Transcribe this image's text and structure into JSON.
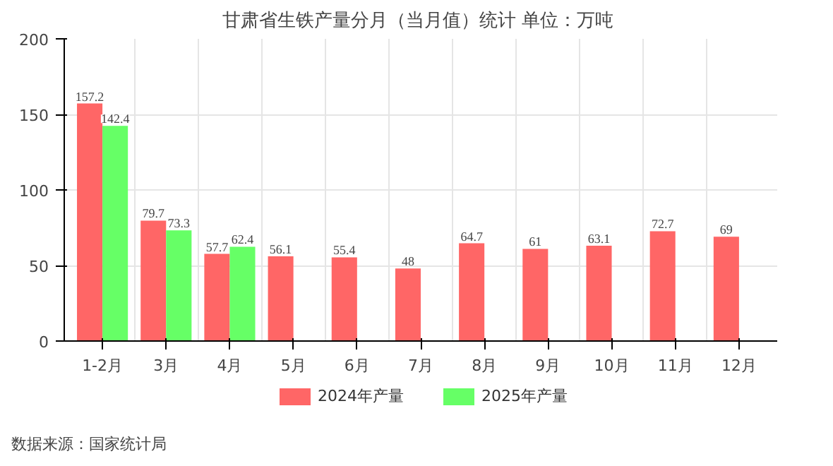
{
  "chart_data": {
    "type": "bar",
    "title": "甘肃省生铁产量分月（当月值）统计  单位：万吨",
    "categories": [
      "1-2月",
      "3月",
      "4月",
      "5月",
      "6月",
      "7月",
      "8月",
      "9月",
      "10月",
      "11月",
      "12月"
    ],
    "series": [
      {
        "name": "2024年产量",
        "color": "#ff6666",
        "values": [
          157.2,
          79.7,
          57.7,
          56.1,
          55.4,
          48,
          64.7,
          61,
          63.1,
          72.7,
          69
        ]
      },
      {
        "name": "2025年产量",
        "color": "#66ff66",
        "values": [
          142.4,
          73.3,
          62.4,
          null,
          null,
          null,
          null,
          null,
          null,
          null,
          null
        ]
      }
    ],
    "ylim": [
      0,
      200
    ],
    "yticks": [
      0,
      50,
      100,
      150,
      200
    ],
    "grid": true,
    "legend": "bottom",
    "data_labels": true,
    "annotations": [
      "数据来源：国家统计局"
    ]
  }
}
